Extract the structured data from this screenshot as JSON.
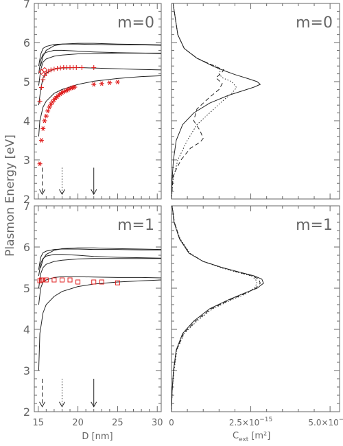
{
  "figure": {
    "ylabel": "Plasmon Energy [eV]",
    "yticks": [
      "2",
      "3",
      "4",
      "5",
      "6",
      "7"
    ],
    "left_xlabel": "D [nm]",
    "left_xticks": [
      "15",
      "20",
      "25",
      "30"
    ],
    "right_xlabel_main": "C",
    "right_xlabel_sub": "ext",
    "right_xlabel_unit": "[m²]",
    "right_xticks": [
      {
        "value": 0,
        "mantissa": "0",
        "exp": ""
      },
      {
        "value": 2.5,
        "mantissa": "2.5×10",
        "exp": "−15"
      },
      {
        "value": 5.0,
        "mantissa": "5.0×10",
        "exp": "−15"
      }
    ]
  },
  "colors": {
    "axis": "#666666",
    "curve": "#222222",
    "marker": "#e02020"
  },
  "chart_data": [
    {
      "type": "line",
      "panel": "top-left",
      "title": "m=0",
      "xlabel": "D [nm]",
      "ylabel": "Plasmon Energy [eV]",
      "xlim": [
        14.5,
        30.5
      ],
      "ylim": [
        2,
        7
      ],
      "series": [
        {
          "style": "solid",
          "x": [
            15.05,
            15.2,
            15.6,
            16,
            17,
            18,
            20,
            22,
            25,
            28,
            30.5
          ],
          "y": [
            3.6,
            4.0,
            4.35,
            4.5,
            4.7,
            4.8,
            4.93,
            5.01,
            5.08,
            5.13,
            5.15
          ]
        },
        {
          "style": "solid",
          "x": [
            15.05,
            15.3,
            15.6,
            16,
            17,
            18,
            20,
            22,
            25,
            28,
            30.5
          ],
          "y": [
            4.4,
            4.8,
            5.1,
            5.22,
            5.32,
            5.35,
            5.36,
            5.35,
            5.33,
            5.31,
            5.3
          ]
        },
        {
          "style": "solid",
          "x": [
            15.05,
            15.3,
            15.6,
            16,
            17,
            18,
            20,
            22,
            25,
            28,
            30.5
          ],
          "y": [
            4.9,
            5.3,
            5.5,
            5.58,
            5.65,
            5.68,
            5.71,
            5.72,
            5.73,
            5.73,
            5.73
          ]
        },
        {
          "style": "solid",
          "x": [
            15.05,
            15.3,
            15.6,
            16,
            17,
            18,
            20,
            22,
            25,
            28,
            30.5
          ],
          "y": [
            5.2,
            5.55,
            5.7,
            5.75,
            5.8,
            5.8,
            5.78,
            5.76,
            5.74,
            5.73,
            5.72
          ]
        },
        {
          "style": "solid",
          "x": [
            15.05,
            15.3,
            15.6,
            16,
            17,
            18,
            20,
            22,
            25,
            28,
            30.5
          ],
          "y": [
            5.4,
            5.7,
            5.85,
            5.9,
            5.95,
            5.96,
            5.96,
            5.95,
            5.94,
            5.94,
            5.93
          ]
        },
        {
          "style": "solid",
          "x": [
            15.3,
            15.6,
            16,
            17,
            18,
            20,
            22,
            25,
            28,
            30.5
          ],
          "y": [
            5.4,
            5.65,
            5.8,
            5.92,
            5.96,
            5.98,
            5.98,
            5.96,
            5.95,
            5.94
          ]
        }
      ],
      "markers_star": {
        "x": [
          15.2,
          15.4,
          15.6,
          15.8,
          16.0,
          16.2,
          16.4,
          16.6,
          16.8,
          17.0,
          17.2,
          17.4,
          17.6,
          17.8,
          18.0,
          18.2,
          18.4,
          18.6,
          18.8,
          19.0,
          19.2,
          19.4,
          19.6,
          22.0,
          23.0,
          24.0,
          25.0
        ],
        "y": [
          2.9,
          3.5,
          3.8,
          4.0,
          4.12,
          4.25,
          4.35,
          4.42,
          4.48,
          4.54,
          4.58,
          4.62,
          4.66,
          4.69,
          4.72,
          4.74,
          4.76,
          4.78,
          4.8,
          4.82,
          4.84,
          4.85,
          4.86,
          4.93,
          4.95,
          4.97,
          4.99
        ]
      },
      "markers_plus": {
        "x": [
          15.2,
          15.4,
          15.6,
          15.8,
          16.0,
          16.3,
          16.6,
          17.0,
          17.4,
          17.8,
          18.2,
          18.6,
          19.0,
          19.4,
          19.8,
          20.5,
          22.0
        ],
        "y": [
          4.5,
          4.85,
          5.05,
          5.15,
          5.22,
          5.27,
          5.3,
          5.32,
          5.34,
          5.35,
          5.36,
          5.36,
          5.36,
          5.36,
          5.36,
          5.36,
          5.36
        ]
      },
      "markers_diamond": {
        "x": [
          15.4,
          15.8
        ],
        "y": [
          5.25,
          5.3
        ]
      },
      "arrows": [
        {
          "x": 15.5,
          "style": "dashed"
        },
        {
          "x": 18.0,
          "style": "dotted"
        },
        {
          "x": 22.0,
          "style": "solid"
        }
      ]
    },
    {
      "type": "line",
      "panel": "top-right",
      "title": "m=0",
      "xlabel": "C_ext [m²]",
      "xlim": [
        0,
        5.3
      ],
      "ylim": [
        2,
        7
      ],
      "series": [
        {
          "style": "solid",
          "x": [
            0.0,
            0.02,
            0.06,
            0.15,
            0.35,
            0.7,
            1.2,
            1.8,
            2.3,
            2.6,
            2.8,
            2.7,
            2.4,
            2.0,
            1.7,
            1.5,
            1.3,
            0.8,
            0.4,
            0.2,
            0.05
          ],
          "y": [
            2.0,
            2.5,
            3.0,
            3.5,
            3.9,
            4.2,
            4.45,
            4.65,
            4.78,
            4.86,
            4.93,
            5.0,
            5.08,
            5.18,
            5.27,
            5.33,
            5.4,
            5.6,
            5.85,
            6.2,
            7.0
          ]
        },
        {
          "style": "dashed",
          "x": [
            0.0,
            0.05,
            0.3,
            0.6,
            0.9,
            1.0,
            0.9,
            0.7,
            0.8,
            1.2,
            1.5,
            1.6,
            1.4,
            1.55,
            1.65,
            1.5,
            1.3,
            0.8,
            0.4,
            0.2,
            0.05
          ],
          "y": [
            2.0,
            2.6,
            3.0,
            3.3,
            3.45,
            3.55,
            3.75,
            4.0,
            4.3,
            4.6,
            4.8,
            4.95,
            5.1,
            5.2,
            5.3,
            5.35,
            5.42,
            5.6,
            5.85,
            6.2,
            7.0
          ]
        },
        {
          "style": "dotted",
          "x": [
            0.0,
            0.05,
            0.2,
            0.5,
            0.8,
            1.2,
            1.6,
            1.9,
            2.05,
            1.9,
            1.6,
            1.5,
            1.55,
            1.4,
            1.2,
            0.8,
            0.4,
            0.2,
            0.05
          ],
          "y": [
            2.0,
            2.5,
            3.0,
            3.5,
            3.9,
            4.2,
            4.5,
            4.7,
            4.85,
            5.0,
            5.1,
            5.2,
            5.3,
            5.4,
            5.45,
            5.6,
            5.85,
            6.2,
            7.0
          ]
        }
      ]
    },
    {
      "type": "line",
      "panel": "bottom-left",
      "title": "m=1",
      "xlabel": "D [nm]",
      "ylabel": "Plasmon Energy [eV]",
      "xlim": [
        14.5,
        30.5
      ],
      "ylim": [
        2,
        7
      ],
      "series": [
        {
          "style": "solid",
          "x": [
            15.05,
            15.2,
            15.6,
            16,
            17,
            18,
            20,
            22,
            25,
            28,
            30.5
          ],
          "y": [
            3.0,
            3.9,
            4.4,
            4.6,
            4.8,
            4.92,
            5.04,
            5.1,
            5.15,
            5.18,
            5.2
          ]
        },
        {
          "style": "solid",
          "x": [
            15.05,
            15.3,
            15.6,
            16,
            17,
            18,
            20,
            22,
            25,
            28,
            30.5
          ],
          "y": [
            4.6,
            5.0,
            5.15,
            5.2,
            5.26,
            5.28,
            5.28,
            5.27,
            5.26,
            5.26,
            5.25
          ]
        },
        {
          "style": "solid",
          "x": [
            15.05,
            15.3,
            15.6,
            16,
            17,
            18,
            20,
            22,
            25,
            28,
            30.5
          ],
          "y": [
            5.0,
            5.35,
            5.5,
            5.58,
            5.65,
            5.68,
            5.71,
            5.72,
            5.72,
            5.72,
            5.72
          ]
        },
        {
          "style": "solid",
          "x": [
            15.05,
            15.3,
            15.6,
            16,
            17,
            18,
            20,
            22,
            25,
            28,
            30.5
          ],
          "y": [
            5.3,
            5.6,
            5.72,
            5.78,
            5.82,
            5.82,
            5.8,
            5.77,
            5.75,
            5.74,
            5.73
          ]
        },
        {
          "style": "solid",
          "x": [
            15.05,
            15.3,
            15.6,
            16,
            17,
            18,
            20,
            22,
            25,
            28,
            30.5
          ],
          "y": [
            5.45,
            5.75,
            5.86,
            5.9,
            5.94,
            5.95,
            5.95,
            5.94,
            5.94,
            5.93,
            5.93
          ]
        },
        {
          "style": "solid",
          "x": [
            15.3,
            15.6,
            16,
            17,
            18,
            20,
            22,
            25,
            28,
            30.5
          ],
          "y": [
            5.5,
            5.7,
            5.82,
            5.92,
            5.96,
            5.98,
            5.98,
            5.96,
            5.95,
            5.94
          ]
        }
      ],
      "markers_square": {
        "x": [
          15.2,
          15.4,
          15.6,
          16.0,
          17.0,
          18.0,
          19.0,
          20.0,
          22.0,
          23.0,
          25.0
        ],
        "y": [
          5.18,
          5.2,
          5.2,
          5.2,
          5.2,
          5.2,
          5.2,
          5.15,
          5.15,
          5.15,
          5.13
        ]
      },
      "arrows": [
        {
          "x": 15.5,
          "style": "dashed"
        },
        {
          "x": 18.0,
          "style": "dotted"
        },
        {
          "x": 22.0,
          "style": "solid"
        }
      ]
    },
    {
      "type": "line",
      "panel": "bottom-right",
      "title": "m=1",
      "xlabel": "C_ext [m²]",
      "xlim": [
        0,
        5.3
      ],
      "ylim": [
        2,
        7
      ],
      "series": [
        {
          "style": "solid",
          "x": [
            0.0,
            0.02,
            0.06,
            0.15,
            0.35,
            0.7,
            1.2,
            1.8,
            2.3,
            2.7,
            2.9,
            2.85,
            2.6,
            2.2,
            1.6,
            1.0,
            0.55,
            0.25,
            0.08,
            0.02
          ],
          "y": [
            2.0,
            2.5,
            3.0,
            3.5,
            3.9,
            4.2,
            4.5,
            4.72,
            4.88,
            5.0,
            5.12,
            5.22,
            5.3,
            5.38,
            5.5,
            5.65,
            5.85,
            6.2,
            6.6,
            7.0
          ]
        },
        {
          "style": "dashed",
          "x": [
            0.0,
            0.02,
            0.07,
            0.16,
            0.38,
            0.75,
            1.25,
            1.85,
            2.35,
            2.65,
            2.8,
            2.75,
            2.55,
            2.15,
            1.6,
            1.0,
            0.56,
            0.26,
            0.09,
            0.02
          ],
          "y": [
            2.0,
            2.5,
            3.0,
            3.5,
            3.9,
            4.2,
            4.5,
            4.72,
            4.88,
            5.0,
            5.12,
            5.22,
            5.3,
            5.38,
            5.5,
            5.65,
            5.85,
            6.2,
            6.6,
            7.0
          ]
        },
        {
          "style": "dotted",
          "x": [
            0.0,
            0.02,
            0.08,
            0.17,
            0.4,
            0.8,
            1.3,
            1.9,
            2.4,
            2.6,
            2.7,
            2.65,
            2.5,
            2.1,
            1.55,
            1.0,
            0.58,
            0.27,
            0.09,
            0.02
          ],
          "y": [
            2.0,
            2.5,
            3.0,
            3.5,
            3.9,
            4.2,
            4.5,
            4.72,
            4.88,
            5.0,
            5.12,
            5.22,
            5.3,
            5.38,
            5.5,
            5.65,
            5.85,
            6.2,
            6.6,
            7.0
          ]
        }
      ]
    }
  ]
}
